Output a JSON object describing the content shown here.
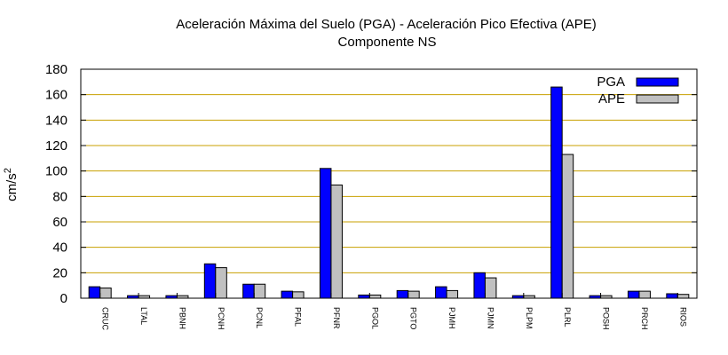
{
  "chart_data": {
    "type": "bar",
    "title": "Aceleración Máxima del Suelo (PGA) -  Aceleración Pico Efectiva (APE)",
    "subtitle": "Componente NS",
    "xlabel": "",
    "ylabel": "cm/s",
    "ylabel_superscript": "2",
    "ylim": [
      0,
      180
    ],
    "yticks": [
      0,
      20,
      40,
      60,
      80,
      100,
      120,
      140,
      160,
      180
    ],
    "grid": "horizontal",
    "legend_position": "top-right",
    "categories": [
      "CRUC",
      "LTAL",
      "PBNH",
      "PCNH",
      "PCNL",
      "PFAL",
      "PFNR",
      "PGOL",
      "PGTO",
      "PJMH",
      "PJMN",
      "PLPM",
      "PLRL",
      "POSH",
      "PRCH",
      "RIOS"
    ],
    "series": [
      {
        "name": "PGA",
        "color": "#0000ff",
        "values": [
          9,
          2,
          2,
          27,
          11,
          5.5,
          102,
          2.5,
          6,
          9,
          20,
          2,
          166,
          2,
          5.5,
          3.5
        ]
      },
      {
        "name": "APE",
        "color": "#c0c0c0",
        "values": [
          8,
          2,
          2,
          24,
          11,
          5,
          89,
          2.5,
          5.5,
          6,
          16,
          2,
          113,
          2,
          5.5,
          3
        ]
      }
    ],
    "colors": {
      "grid": "#c8a000",
      "axis": "#000000"
    }
  }
}
